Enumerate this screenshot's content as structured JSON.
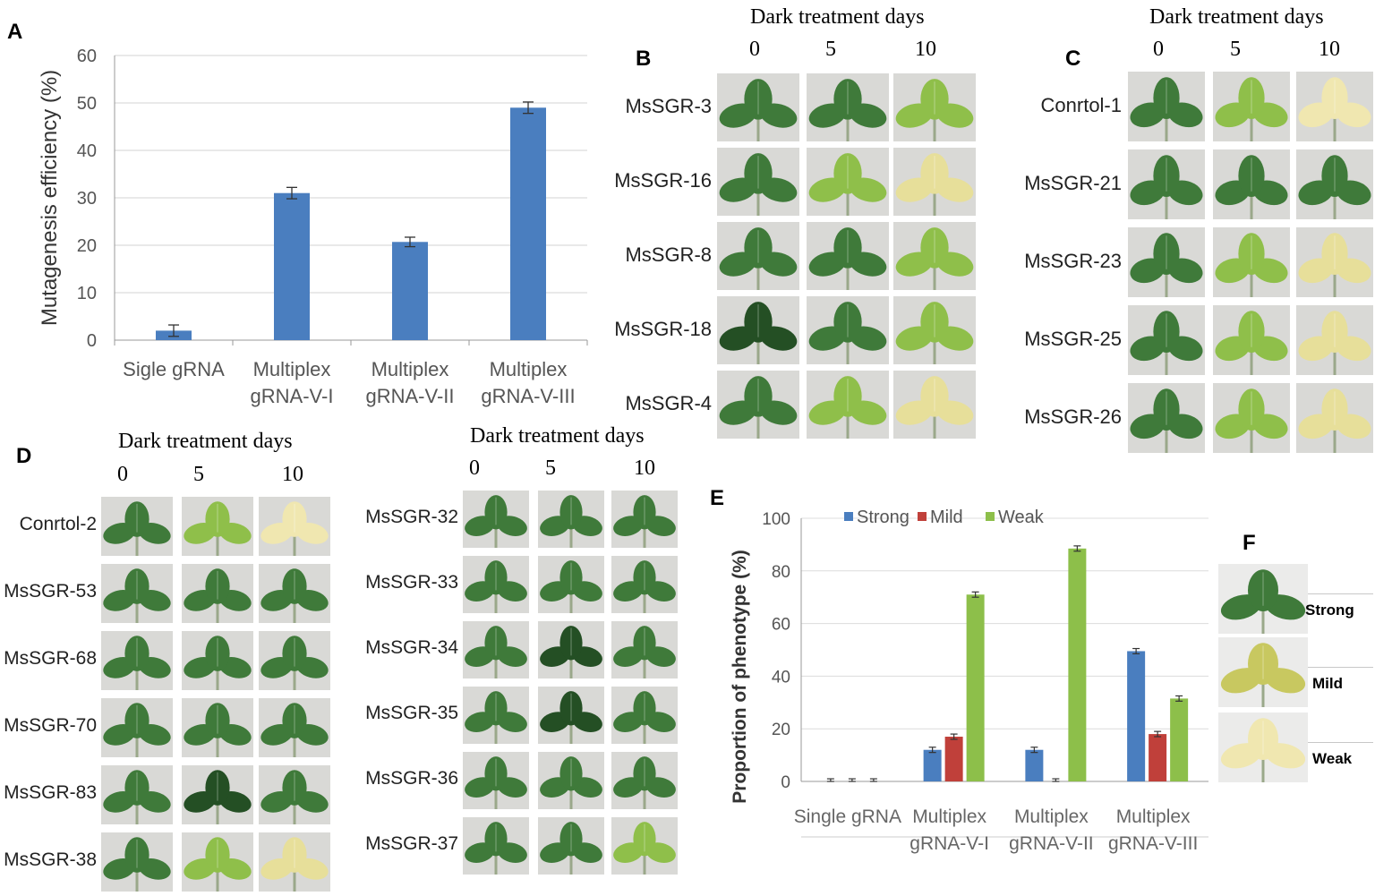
{
  "panels": {
    "a": "A",
    "b": "B",
    "c": "C",
    "d": "D",
    "e": "E",
    "f": "F"
  },
  "dark_header": "Dark treatment   days",
  "days": [
    "0",
    "5",
    "10"
  ],
  "panel_b_rows": [
    "MsSGR-3",
    "MsSGR-16",
    "MsSGR-8",
    "MsSGR-18",
    "MsSGR-4"
  ],
  "panel_c_rows": [
    "Conrtol-1",
    "MsSGR-21",
    "MsSGR-23",
    "MsSGR-25",
    "MsSGR-26"
  ],
  "panel_d_left_rows": [
    "Conrtol-2",
    "MsSGR-53",
    "MsSGR-68",
    "MsSGR-70",
    "MsSGR-83",
    "MsSGR-38"
  ],
  "panel_d_right_rows": [
    "MsSGR-32",
    "MsSGR-33",
    "MsSGR-34",
    "MsSGR-35",
    "MsSGR-36",
    "MsSGR-37"
  ],
  "panel_f_labels": [
    "Strong",
    "Mild",
    "Weak"
  ],
  "colors": {
    "bar_a": "#4a7ebf",
    "strong": "#4a7ebf",
    "mild": "#c0403a",
    "weak": "#8dbf4a",
    "leaf_green": "#3f7a3a",
    "leaf_dark": "#244f24",
    "leaf_light": "#8fbf4a",
    "leaf_yellow": "#e7df9a",
    "leaf_pale": "#f0e7b0",
    "bg_grey": "#d9d9d6"
  },
  "chart_data": [
    {
      "type": "bar",
      "title": "",
      "ylabel": "Mutagenesis efficiency (%)",
      "xlabel": "",
      "categories": [
        "Sigle gRNA",
        "Multiplex gRNA-V-I",
        "Multiplex gRNA-V-II",
        "Multiplex gRNA-V-III"
      ],
      "category_lines": [
        [
          "Sigle gRNA",
          ""
        ],
        [
          "Multiplex",
          "gRNA-V-I"
        ],
        [
          "Multiplex",
          "gRNA-V-II"
        ],
        [
          "Multiplex",
          "gRNA-V-III"
        ]
      ],
      "values": [
        2,
        31,
        20.7,
        49
      ],
      "errors": [
        1.2,
        1.2,
        1,
        1.2
      ],
      "ylim": [
        0,
        60
      ],
      "yticks": [
        "0",
        "10",
        "20",
        "30",
        "40",
        "50",
        "60"
      ],
      "grid": true
    },
    {
      "type": "bar",
      "title": "",
      "ylabel": "Proportion of phenotype  (%)",
      "xlabel": "",
      "categories": [
        "Single gRNA",
        "Multiplex gRNA-V-I",
        "Multiplex gRNA-V-II",
        "Multiplex gRNA-V-III"
      ],
      "category_lines": [
        [
          "Single gRNA",
          ""
        ],
        [
          "Multiplex",
          "gRNA-V-I"
        ],
        [
          "Multiplex",
          "gRNA-V-II"
        ],
        [
          "Multiplex",
          "gRNA-V-III"
        ]
      ],
      "series": [
        {
          "name": "Strong",
          "values": [
            0,
            12,
            12,
            49.5
          ],
          "errors": [
            1,
            1,
            1,
            1
          ]
        },
        {
          "name": "Mild",
          "values": [
            0,
            17,
            0,
            18
          ],
          "errors": [
            1,
            1,
            1,
            1
          ]
        },
        {
          "name": "Weak",
          "values": [
            0,
            71,
            88.5,
            31.5
          ],
          "errors": [
            1,
            1,
            1,
            1
          ]
        }
      ],
      "ylim": [
        0,
        100
      ],
      "yticks": [
        "0",
        "20",
        "40",
        "60",
        "80",
        "100"
      ],
      "legend": "top-left",
      "grid": true
    }
  ]
}
